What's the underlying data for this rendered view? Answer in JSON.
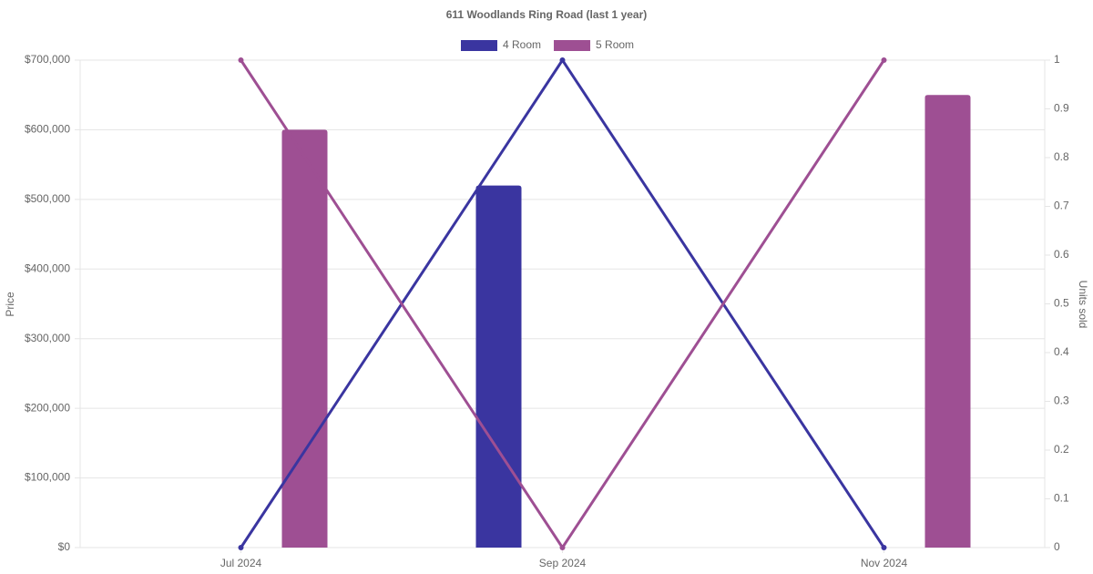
{
  "chart_data": {
    "type": "bar-line",
    "title": "611 Woodlands Ring Road (last 1 year)",
    "y_label": "Price",
    "y2_label": "Units sold",
    "categories": [
      "Jul 2024",
      "Sep 2024",
      "Nov 2024"
    ],
    "series": [
      {
        "name": "4 Room",
        "color": "#3a35a0",
        "values": [
          null,
          520000,
          null
        ],
        "units_sold": [
          0,
          1,
          0
        ]
      },
      {
        "name": "5 Room",
        "color": "#9e4f93",
        "values": [
          600000,
          null,
          650000
        ],
        "units_sold": [
          1,
          0,
          1
        ]
      }
    ],
    "ylim": [
      0,
      700000
    ],
    "yticks": [
      {
        "value": 0,
        "label": "$0"
      },
      {
        "value": 100000,
        "label": "$100,000"
      },
      {
        "value": 200000,
        "label": "$200,000"
      },
      {
        "value": 300000,
        "label": "$300,000"
      },
      {
        "value": 400000,
        "label": "$400,000"
      },
      {
        "value": 500000,
        "label": "$500,000"
      },
      {
        "value": 600000,
        "label": "$600,000"
      },
      {
        "value": 700000,
        "label": "$700,000"
      }
    ],
    "y2lim": [
      0,
      1
    ],
    "y2ticks": [
      0,
      0.1,
      0.2,
      0.3,
      0.4,
      0.5,
      0.6,
      0.7,
      0.8,
      0.9,
      1
    ],
    "grid": true,
    "legend": "top"
  }
}
